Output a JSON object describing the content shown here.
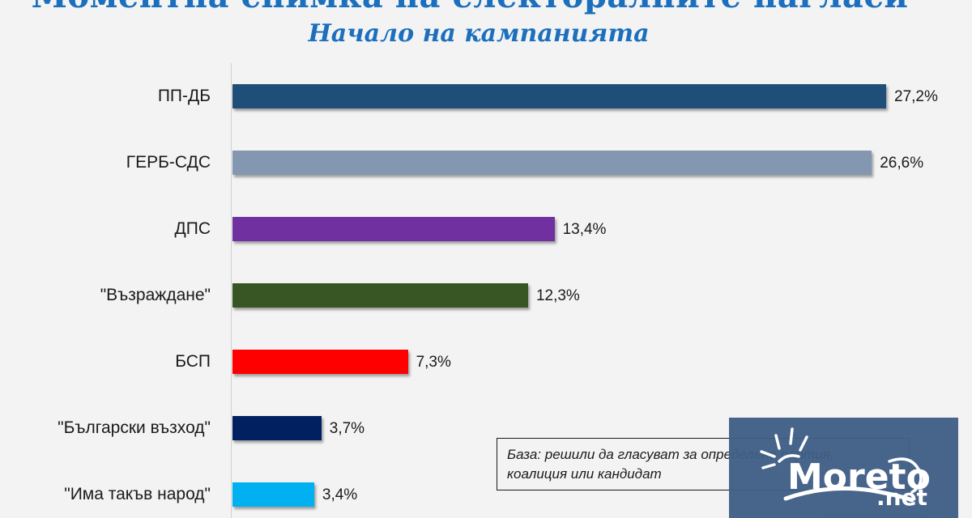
{
  "header": {
    "title": "Моментна снимка на електоралните нагласи",
    "subtitle": "Начало на кампанията"
  },
  "note": {
    "text_line1": "База: решили да гласуват за определена партия,",
    "text_line2": "коалиция или кандидат"
  },
  "watermark": {
    "brand": "Moreto",
    "suffix": ".net",
    "background_color": "#3f5e86"
  },
  "colors": {
    "background": "#f3f3f3",
    "title": "#1b6fbd"
  },
  "chart_data": {
    "type": "bar",
    "orientation": "horizontal",
    "title": "Моментна снимка на електоралните нагласи",
    "subtitle": "Начало на кампанията",
    "xlabel": "",
    "ylabel": "",
    "categories": [
      "ПП-ДБ",
      "ГЕРБ-СДС",
      "ДПС",
      "\"Възраждане\"",
      "БСП",
      "\"Български възход\"",
      "\"Има такъв народ\""
    ],
    "values": [
      27.2,
      26.6,
      13.4,
      12.3,
      7.3,
      3.7,
      3.4
    ],
    "value_labels": [
      "27,2%",
      "26,6%",
      "13,4%",
      "12,3%",
      "7,3%",
      "3,7%",
      "3,4%"
    ],
    "bar_colors": [
      "#1f4e79",
      "#8497b0",
      "#7030a0",
      "#375623",
      "#ff0000",
      "#002060",
      "#00b0f0"
    ],
    "unit": "%",
    "grid": false,
    "legend": null,
    "annotation": "База: решили да гласуват за определена партия, коалиция или кандидат"
  }
}
